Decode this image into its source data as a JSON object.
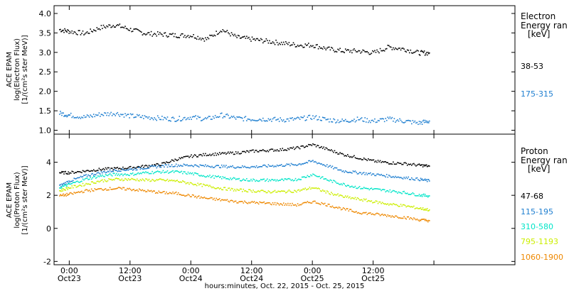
{
  "chart_data": [
    {
      "type": "scatter",
      "panel": "electron",
      "ylabel": [
        "ACE EPAM",
        "log(Electron Flux)",
        "[1/(cm²s ster MeV)]"
      ],
      "ylim": [
        0.9,
        4.2
      ],
      "yticks": [
        1.0,
        1.5,
        2.0,
        2.5,
        3.0,
        3.5,
        4.0
      ],
      "ytick_labels": [
        "1.0",
        "1.5",
        "2.0",
        "2.5",
        "3.0",
        "3.5",
        "4.0"
      ],
      "legend_title": [
        "Electron",
        "Energy ran",
        "[keV]"
      ],
      "series": [
        {
          "name": "38-53",
          "color": "#000000",
          "x": [
            -2,
            0,
            3,
            6,
            9,
            12,
            15,
            18,
            21,
            24,
            27,
            30,
            33,
            36,
            39,
            42,
            45,
            48,
            51,
            54,
            57,
            60,
            63,
            66,
            69,
            71
          ],
          "y": [
            3.6,
            3.55,
            3.5,
            3.65,
            3.72,
            3.6,
            3.5,
            3.48,
            3.45,
            3.45,
            3.35,
            3.6,
            3.4,
            3.35,
            3.3,
            3.25,
            3.2,
            3.2,
            3.1,
            3.05,
            3.05,
            3.0,
            3.15,
            3.1,
            3.0,
            3.0
          ]
        },
        {
          "name": "175-315",
          "color": "#1f7fd0",
          "x": [
            -2,
            0,
            3,
            6,
            9,
            12,
            15,
            18,
            21,
            24,
            27,
            30,
            33,
            36,
            39,
            42,
            45,
            48,
            51,
            54,
            57,
            60,
            63,
            66,
            69,
            71
          ],
          "y": [
            1.45,
            1.4,
            1.35,
            1.42,
            1.45,
            1.38,
            1.35,
            1.32,
            1.3,
            1.35,
            1.3,
            1.4,
            1.32,
            1.3,
            1.3,
            1.28,
            1.3,
            1.35,
            1.28,
            1.25,
            1.3,
            1.25,
            1.3,
            1.25,
            1.2,
            1.25
          ]
        }
      ]
    },
    {
      "type": "scatter",
      "panel": "proton",
      "ylabel": [
        "ACE EPAM",
        "log(Proton Flux)",
        "[1/(cm²s ster MeV)]"
      ],
      "ylim": [
        -2.2,
        5.7
      ],
      "yticks": [
        -2,
        0,
        2,
        4
      ],
      "ytick_labels": [
        "-2",
        "0",
        "2",
        "4"
      ],
      "legend_title": [
        "Proton",
        "Energy ran",
        "[keV]"
      ],
      "series": [
        {
          "name": "47-68",
          "color": "#000000",
          "x": [
            -2,
            0,
            3,
            6,
            9,
            12,
            15,
            18,
            21,
            24,
            27,
            30,
            33,
            36,
            39,
            42,
            45,
            48,
            51,
            54,
            57,
            60,
            63,
            66,
            69,
            71
          ],
          "y": [
            3.4,
            3.4,
            3.5,
            3.6,
            3.65,
            3.7,
            3.8,
            3.9,
            4.2,
            4.4,
            4.5,
            4.55,
            4.6,
            4.7,
            4.75,
            4.8,
            4.9,
            5.1,
            4.8,
            4.5,
            4.3,
            4.1,
            4.0,
            3.95,
            3.85,
            3.8
          ]
        },
        {
          "name": "115-195",
          "color": "#1f7fd0",
          "x": [
            -2,
            0,
            3,
            6,
            9,
            12,
            15,
            18,
            21,
            24,
            27,
            30,
            33,
            36,
            39,
            42,
            45,
            48,
            51,
            54,
            57,
            60,
            63,
            66,
            69,
            71
          ],
          "y": [
            2.6,
            2.9,
            3.2,
            3.4,
            3.55,
            3.6,
            3.7,
            3.8,
            3.85,
            3.85,
            3.8,
            3.78,
            3.75,
            3.75,
            3.8,
            3.85,
            3.9,
            4.1,
            3.8,
            3.5,
            3.4,
            3.3,
            3.2,
            3.1,
            3.0,
            2.9
          ]
        },
        {
          "name": "310-580",
          "color": "#00e5c8",
          "x": [
            -2,
            0,
            3,
            6,
            9,
            12,
            15,
            18,
            21,
            24,
            27,
            30,
            33,
            36,
            39,
            42,
            45,
            48,
            51,
            54,
            57,
            60,
            63,
            66,
            69,
            71
          ],
          "y": [
            2.5,
            2.7,
            3.0,
            3.2,
            3.3,
            3.3,
            3.4,
            3.45,
            3.45,
            3.35,
            3.2,
            3.1,
            3.0,
            2.95,
            2.95,
            2.95,
            3.0,
            3.3,
            2.95,
            2.7,
            2.5,
            2.4,
            2.3,
            2.2,
            2.05,
            2.0
          ]
        },
        {
          "name": "795-1193",
          "color": "#ccee00",
          "x": [
            -2,
            0,
            3,
            6,
            9,
            12,
            15,
            18,
            21,
            24,
            27,
            30,
            33,
            36,
            39,
            42,
            45,
            48,
            51,
            54,
            57,
            60,
            63,
            66,
            69,
            71
          ],
          "y": [
            2.3,
            2.5,
            2.7,
            2.9,
            3.0,
            3.0,
            2.95,
            2.95,
            2.9,
            2.75,
            2.6,
            2.45,
            2.35,
            2.3,
            2.25,
            2.25,
            2.3,
            2.5,
            2.2,
            1.95,
            1.8,
            1.65,
            1.5,
            1.4,
            1.25,
            1.15
          ]
        },
        {
          "name": "1060-1900",
          "color": "#ee8800",
          "x": [
            -2,
            0,
            3,
            6,
            9,
            12,
            15,
            18,
            21,
            24,
            27,
            30,
            33,
            36,
            39,
            42,
            45,
            48,
            51,
            54,
            57,
            60,
            63,
            66,
            69,
            71
          ],
          "y": [
            2.0,
            2.1,
            2.3,
            2.4,
            2.45,
            2.4,
            2.3,
            2.2,
            2.15,
            2.0,
            1.85,
            1.75,
            1.65,
            1.6,
            1.55,
            1.5,
            1.45,
            1.65,
            1.45,
            1.2,
            1.0,
            0.9,
            0.8,
            0.7,
            0.55,
            0.5
          ]
        }
      ]
    }
  ],
  "x_axis": {
    "xlim": [
      -3,
      88
    ],
    "ticks": [
      0,
      12,
      24,
      36,
      48,
      60,
      72
    ],
    "tick_labels": [
      {
        "time": "0:00",
        "date": "Oct23"
      },
      {
        "time": "12:00",
        "date": "Oct23"
      },
      {
        "time": "0:00",
        "date": "Oct24"
      },
      {
        "time": "12:00",
        "date": "Oct24"
      },
      {
        "time": "0:00",
        "date": "Oct25"
      },
      {
        "time": "12:00",
        "date": "Oct25"
      },
      {
        "time": "",
        "date": ""
      }
    ],
    "xlabel": "hours:minutes, Oct. 22, 2015 - Oct. 25, 2015"
  }
}
